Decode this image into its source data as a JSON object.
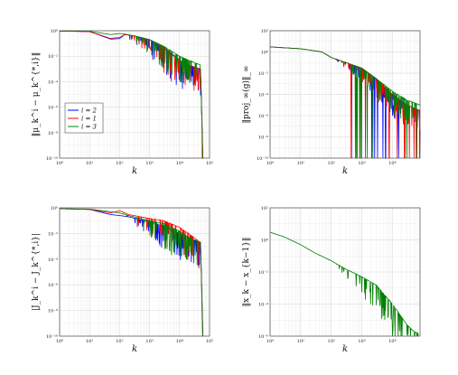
{
  "chart_data": [
    {
      "type": "line",
      "xscale": "log",
      "yscale": "log",
      "xlim": [
        1,
        100000
      ],
      "ylim": [
        1e-10,
        1
      ],
      "xlabel": "k",
      "ylabel": "‖μ_k^i − μ_k^{*,i}‖",
      "grid": true,
      "legend": {
        "location": "lower-left",
        "entries": [
          "i = 2",
          "i = 1",
          "i = 3"
        ]
      },
      "series": [
        {
          "name": "i = 2",
          "color": "#0000ff",
          "x": [
            1,
            10,
            50,
            100,
            150,
            300,
            500,
            1000,
            3000,
            10000,
            20000,
            50000,
            60000
          ],
          "y": [
            0.95,
            0.85,
            0.22,
            0.24,
            0.5,
            0.4,
            0.3,
            0.2,
            0.05,
            0.005,
            0.002,
            0.001,
            1e-10
          ]
        },
        {
          "name": "i = 1",
          "color": "#ff0000",
          "x": [
            1,
            10,
            50,
            100,
            150,
            300,
            500,
            1000,
            3000,
            10000,
            20000,
            50000,
            60000
          ],
          "y": [
            0.95,
            0.85,
            0.25,
            0.3,
            0.5,
            0.4,
            0.3,
            0.2,
            0.05,
            0.004,
            0.002,
            0.001,
            1e-10
          ]
        },
        {
          "name": "i = 3",
          "color": "#008000",
          "x": [
            1,
            10,
            50,
            100,
            150,
            300,
            500,
            1000,
            3000,
            10000,
            20000,
            50000,
            60000
          ],
          "y": [
            0.95,
            0.9,
            0.5,
            0.6,
            0.55,
            0.4,
            0.3,
            0.2,
            0.06,
            0.01,
            0.005,
            0.002,
            1e-10
          ]
        }
      ]
    },
    {
      "type": "line",
      "xscale": "log",
      "yscale": "log",
      "xlim": [
        1,
        80000
      ],
      "ylim": [
        1e-10,
        100
      ],
      "xlabel": "k",
      "ylabel": "‖proj_∞(g)‖_∞",
      "grid": true,
      "series": [
        {
          "name": "",
          "color": "#0000ff",
          "x": [
            1,
            10,
            50,
            100,
            300,
            1000,
            3000,
            10000,
            30000,
            80000
          ],
          "y": [
            3,
            2,
            1,
            0.3,
            0.1,
            0.03,
            0.003,
            0.0001,
            1e-05,
            3e-06
          ]
        },
        {
          "name": "",
          "color": "#ff0000",
          "x": [
            1,
            10,
            50,
            100,
            300,
            1000,
            3000,
            10000,
            30000,
            80000
          ],
          "y": [
            3,
            2,
            1,
            0.3,
            0.1,
            0.03,
            0.003,
            0.0001,
            1e-05,
            3e-06
          ]
        },
        {
          "name": "",
          "color": "#008000",
          "x": [
            1,
            10,
            50,
            100,
            300,
            1000,
            3000,
            10000,
            30000,
            80000
          ],
          "y": [
            3,
            2,
            1,
            0.3,
            0.1,
            0.03,
            0.003,
            0.0002,
            3e-05,
            1e-05
          ]
        }
      ]
    },
    {
      "type": "line",
      "xscale": "log",
      "yscale": "log",
      "xlim": [
        1,
        100000
      ],
      "ylim": [
        1e-10,
        1
      ],
      "xlabel": "k",
      "ylabel": "|J_k^i − J_k^{*,i}|",
      "grid": true,
      "series": [
        {
          "name": "",
          "color": "#0000ff",
          "x": [
            1,
            10,
            50,
            100,
            200,
            500,
            1000,
            3000,
            10000,
            20000,
            50000,
            60000
          ],
          "y": [
            0.85,
            0.75,
            0.3,
            0.25,
            0.2,
            0.12,
            0.08,
            0.04,
            0.01,
            0.005,
            0.002,
            1e-10
          ]
        },
        {
          "name": "",
          "color": "#ff0000",
          "x": [
            1,
            10,
            50,
            100,
            200,
            500,
            1000,
            3000,
            10000,
            20000,
            50000,
            60000
          ],
          "y": [
            0.85,
            0.75,
            0.4,
            0.6,
            0.3,
            0.2,
            0.15,
            0.1,
            0.03,
            0.01,
            0.002,
            1e-10
          ]
        },
        {
          "name": "",
          "color": "#008000",
          "x": [
            1,
            10,
            50,
            100,
            200,
            500,
            1000,
            3000,
            10000,
            20000,
            50000,
            60000
          ],
          "y": [
            0.85,
            0.8,
            0.5,
            0.4,
            0.25,
            0.15,
            0.1,
            0.06,
            0.015,
            0.005,
            0.002,
            1e-10
          ]
        }
      ]
    },
    {
      "type": "line",
      "xscale": "log",
      "yscale": "log",
      "xlim": [
        1,
        80000
      ],
      "ylim": [
        1e-06,
        100
      ],
      "xlabel": "k",
      "ylabel": "‖x_k − x_{k−1}‖",
      "grid": true,
      "series": [
        {
          "name": "",
          "color": "#008000",
          "x": [
            1,
            3,
            10,
            30,
            100,
            300,
            1000,
            3000,
            10000,
            30000,
            50000,
            70000
          ],
          "y": [
            3,
            1.5,
            0.5,
            0.15,
            0.05,
            0.015,
            0.005,
            0.0015,
            0.0001,
            5e-06,
            2e-06,
            1.5e-06
          ]
        }
      ]
    }
  ]
}
